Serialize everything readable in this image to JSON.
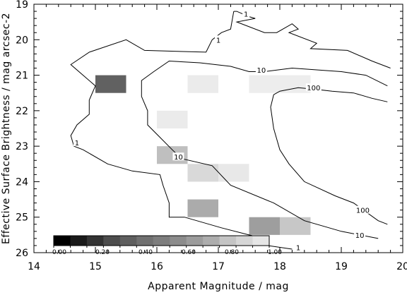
{
  "chart_data": {
    "type": "heatmap",
    "xlabel": "Apparent Magnitude / mag",
    "ylabel": "Effective Surface Brightness / mag arcsec-2",
    "xlim": [
      14,
      20
    ],
    "ylim": [
      26,
      19
    ],
    "y_axis_inverted": true,
    "x_ticks": [
      14,
      15,
      16,
      17,
      18,
      19,
      20
    ],
    "y_ticks": [
      19,
      20,
      21,
      22,
      23,
      24,
      25,
      26
    ],
    "x_tick_labels": [
      "14",
      "15",
      "16",
      "17",
      "18",
      "19",
      "20"
    ],
    "y_tick_labels": [
      "19",
      "20",
      "21",
      "22",
      "23",
      "24",
      "25",
      "26"
    ],
    "cell_width": 0.5,
    "cell_height": 0.5,
    "cells": [
      {
        "x": 15.0,
        "y": 21.0,
        "value": 0.62
      },
      {
        "x": 16.5,
        "y": 21.0,
        "value": 0.08
      },
      {
        "x": 17.5,
        "y": 21.0,
        "value": 0.07
      },
      {
        "x": 18.0,
        "y": 21.0,
        "value": 0.07
      },
      {
        "x": 16.0,
        "y": 22.0,
        "value": 0.08
      },
      {
        "x": 16.0,
        "y": 23.0,
        "value": 0.25
      },
      {
        "x": 16.5,
        "y": 23.5,
        "value": 0.15
      },
      {
        "x": 17.0,
        "y": 23.5,
        "value": 0.09
      },
      {
        "x": 16.5,
        "y": 24.5,
        "value": 0.33
      },
      {
        "x": 17.5,
        "y": 25.0,
        "value": 0.38
      },
      {
        "x": 18.0,
        "y": 25.0,
        "value": 0.22
      }
    ],
    "contours": [
      {
        "label": "1",
        "points": [
          [
            17.25,
            19.2
          ],
          [
            17.3,
            19.2
          ],
          [
            17.5,
            19.35
          ],
          [
            17.6,
            19.4
          ],
          [
            17.3,
            19.5
          ],
          [
            17.75,
            19.8
          ],
          [
            17.95,
            19.8
          ],
          [
            18.2,
            19.55
          ],
          [
            18.3,
            19.7
          ],
          [
            18.15,
            19.8
          ],
          [
            18.6,
            20.1
          ],
          [
            18.5,
            20.25
          ],
          [
            19.1,
            20.3
          ],
          [
            19.5,
            20.6
          ],
          [
            19.8,
            20.8
          ]
        ],
        "labels": [
          {
            "text": "1",
            "x": 17.45,
            "y": 19.27
          },
          {
            "text": "1",
            "x": 17.0,
            "y": 20.0
          }
        ],
        "second_branch": [
          [
            17.25,
            19.2
          ],
          [
            17.2,
            19.7
          ],
          [
            17.05,
            19.8
          ],
          [
            16.9,
            20.0
          ],
          [
            16.8,
            20.35
          ],
          [
            15.8,
            20.3
          ],
          [
            15.5,
            20.0
          ],
          [
            14.9,
            20.35
          ],
          [
            14.6,
            20.7
          ],
          [
            14.8,
            21.0
          ],
          [
            15.0,
            21.3
          ],
          [
            14.9,
            21.7
          ],
          [
            14.9,
            22.1
          ],
          [
            14.7,
            22.4
          ],
          [
            14.6,
            22.7
          ],
          [
            14.65,
            23.0
          ],
          [
            14.8,
            23.1
          ],
          [
            15.2,
            23.5
          ],
          [
            15.6,
            23.7
          ],
          [
            16.05,
            23.8
          ],
          [
            16.1,
            24.1
          ],
          [
            16.2,
            24.6
          ],
          [
            16.2,
            25.0
          ],
          [
            16.45,
            25.0
          ],
          [
            17.05,
            25.3
          ],
          [
            17.5,
            25.5
          ],
          [
            17.75,
            25.6
          ],
          [
            17.8,
            25.8
          ],
          [
            18.2,
            25.9
          ]
        ],
        "tail_labels": [
          {
            "text": "1",
            "x": 14.7,
            "y": 22.9
          },
          {
            "text": "1",
            "x": 18.3,
            "y": 25.85
          }
        ]
      },
      {
        "label": "10",
        "points": [
          [
            19.75,
            21.3
          ],
          [
            19.4,
            21.0
          ],
          [
            19.0,
            20.9
          ],
          [
            18.2,
            20.8
          ],
          [
            17.75,
            20.9
          ],
          [
            17.5,
            20.9
          ],
          [
            17.2,
            20.75
          ],
          [
            16.7,
            20.65
          ],
          [
            16.2,
            20.6
          ],
          [
            15.95,
            20.9
          ],
          [
            15.75,
            21.15
          ],
          [
            15.75,
            21.6
          ],
          [
            15.85,
            22.0
          ],
          [
            15.85,
            22.4
          ],
          [
            16.05,
            22.75
          ],
          [
            16.25,
            23.1
          ],
          [
            16.4,
            23.35
          ],
          [
            16.9,
            23.55
          ],
          [
            17.2,
            24.1
          ],
          [
            17.9,
            24.6
          ],
          [
            18.4,
            25.1
          ],
          [
            19.0,
            25.4
          ],
          [
            19.6,
            25.6
          ]
        ],
        "labels": [
          {
            "text": "10",
            "x": 17.7,
            "y": 20.85
          },
          {
            "text": "10",
            "x": 16.35,
            "y": 23.3
          },
          {
            "text": "10",
            "x": 19.3,
            "y": 25.5
          }
        ]
      },
      {
        "label": "100",
        "points": [
          [
            19.75,
            21.75
          ],
          [
            19.5,
            21.65
          ],
          [
            19.2,
            21.5
          ],
          [
            18.85,
            21.45
          ],
          [
            18.6,
            21.4
          ],
          [
            18.3,
            21.35
          ],
          [
            18.0,
            21.45
          ],
          [
            17.9,
            21.55
          ],
          [
            17.85,
            21.9
          ],
          [
            17.9,
            22.5
          ],
          [
            18.0,
            23.1
          ],
          [
            18.15,
            23.5
          ],
          [
            18.4,
            24.0
          ],
          [
            18.9,
            24.4
          ],
          [
            19.2,
            24.6
          ],
          [
            19.6,
            25.1
          ],
          [
            19.75,
            25.2
          ]
        ],
        "labels": [
          {
            "text": "100",
            "x": 18.55,
            "y": 21.35
          },
          {
            "text": "100",
            "x": 19.35,
            "y": 24.8
          }
        ]
      }
    ],
    "colorbar": {
      "min": 0.0,
      "max": 1.0,
      "tick_labels": [
        "0.00",
        "0.20",
        "0.40",
        "0.60",
        "0.80",
        "1.00"
      ],
      "tick_values": [
        0.0,
        0.2,
        0.4,
        0.6,
        0.8,
        1.0
      ],
      "steps": 13,
      "colors": [
        "#000000",
        "#1a1a1a",
        "#333333",
        "#4d4d4d",
        "#5f5f5f",
        "#707070",
        "#7d7d7d",
        "#8c8c8c",
        "#9c9c9c",
        "#adadad",
        "#c4c4c4",
        "#d6d6d6",
        "#e6e6e6"
      ]
    },
    "grid": false,
    "legend_placement": "bottom-left"
  }
}
